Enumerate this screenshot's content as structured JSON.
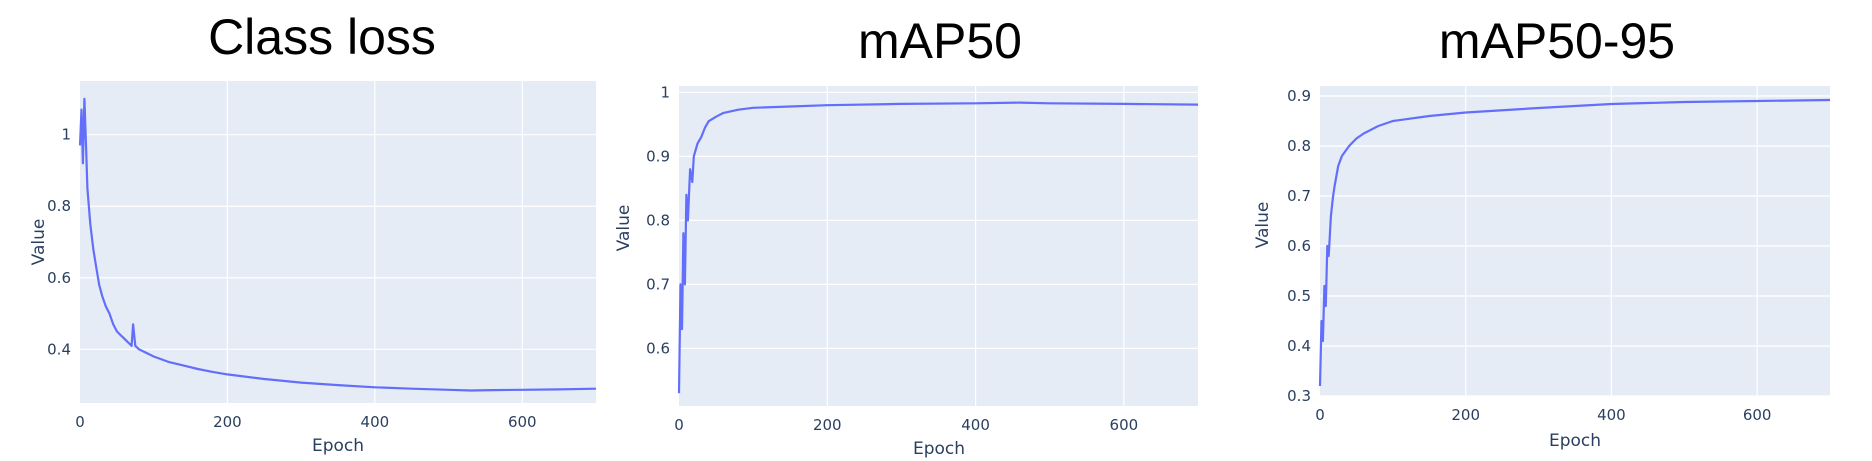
{
  "chart_data": [
    {
      "type": "line",
      "title": "Class loss",
      "xlabel": "Epoch",
      "ylabel": "Value",
      "xlim": [
        0,
        700
      ],
      "ylim": [
        0.25,
        1.15
      ],
      "xticks": [
        0,
        200,
        400,
        600
      ],
      "yticks": [
        0.4,
        0.6,
        0.8,
        1
      ],
      "ytick_labels": [
        "0.4",
        "0.6",
        "0.8",
        "1"
      ],
      "grid": true,
      "series": [
        {
          "color": "#636efa",
          "x": [
            0,
            2,
            4,
            6,
            8,
            10,
            14,
            18,
            22,
            26,
            30,
            35,
            40,
            45,
            50,
            55,
            60,
            65,
            70,
            72,
            75,
            80,
            90,
            100,
            120,
            140,
            160,
            180,
            200,
            250,
            300,
            350,
            400,
            450,
            500,
            530,
            560,
            600,
            650,
            700
          ],
          "y": [
            0.97,
            1.07,
            0.92,
            1.1,
            0.98,
            0.85,
            0.75,
            0.68,
            0.63,
            0.58,
            0.55,
            0.52,
            0.5,
            0.47,
            0.45,
            0.44,
            0.43,
            0.42,
            0.41,
            0.47,
            0.41,
            0.4,
            0.39,
            0.38,
            0.365,
            0.355,
            0.345,
            0.337,
            0.33,
            0.317,
            0.307,
            0.3,
            0.294,
            0.29,
            0.287,
            0.285,
            0.286,
            0.287,
            0.288,
            0.29
          ]
        }
      ]
    },
    {
      "type": "line",
      "title": "mAP50",
      "xlabel": "Epoch",
      "ylabel": "Value",
      "xlim": [
        0,
        700
      ],
      "ylim": [
        0.51,
        1.01
      ],
      "xticks": [
        0,
        200,
        400,
        600
      ],
      "yticks": [
        0.6,
        0.7,
        0.8,
        0.9,
        1
      ],
      "ytick_labels": [
        "0.6",
        "0.7",
        "0.8",
        "0.9",
        "1"
      ],
      "grid": true,
      "series": [
        {
          "color": "#636efa",
          "x": [
            0,
            2,
            4,
            6,
            8,
            10,
            12,
            15,
            18,
            20,
            25,
            30,
            35,
            40,
            50,
            60,
            80,
            100,
            150,
            200,
            300,
            400,
            460,
            500,
            600,
            700
          ],
          "y": [
            0.53,
            0.7,
            0.63,
            0.78,
            0.7,
            0.84,
            0.8,
            0.88,
            0.86,
            0.9,
            0.92,
            0.93,
            0.945,
            0.955,
            0.962,
            0.968,
            0.973,
            0.976,
            0.978,
            0.98,
            0.982,
            0.983,
            0.984,
            0.983,
            0.982,
            0.981
          ]
        }
      ]
    },
    {
      "type": "line",
      "title": "mAP50-95",
      "xlabel": "Epoch",
      "ylabel": "Value",
      "xlim": [
        0,
        700
      ],
      "ylim": [
        0.3,
        0.92
      ],
      "xticks": [
        0,
        200,
        400,
        600
      ],
      "yticks": [
        0.3,
        0.4,
        0.5,
        0.6,
        0.7,
        0.8,
        0.9
      ],
      "ytick_labels": [
        "0.3",
        "0.4",
        "0.5",
        "0.6",
        "0.7",
        "0.8",
        "0.9"
      ],
      "grid": true,
      "series": [
        {
          "color": "#636efa",
          "x": [
            0,
            2,
            4,
            6,
            8,
            10,
            12,
            15,
            18,
            20,
            25,
            30,
            35,
            40,
            50,
            60,
            80,
            100,
            150,
            200,
            300,
            400,
            500,
            600,
            700
          ],
          "y": [
            0.32,
            0.45,
            0.41,
            0.52,
            0.48,
            0.6,
            0.58,
            0.66,
            0.7,
            0.72,
            0.76,
            0.78,
            0.79,
            0.8,
            0.815,
            0.825,
            0.84,
            0.85,
            0.86,
            0.867,
            0.876,
            0.884,
            0.888,
            0.89,
            0.892
          ]
        }
      ]
    }
  ]
}
